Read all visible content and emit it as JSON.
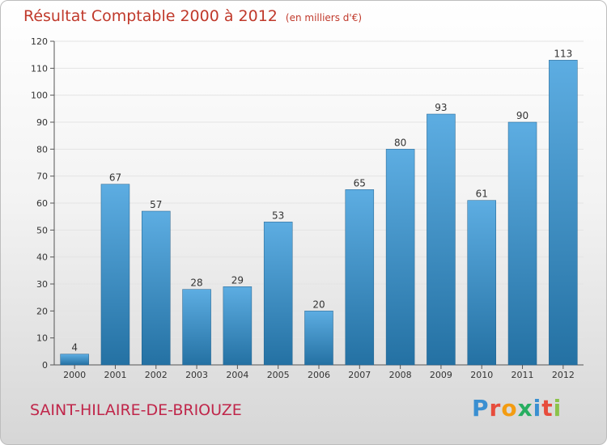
{
  "title": "Résultat Comptable 2000 à 2012",
  "subtitle": "(en milliers d'€)",
  "place": "SAINT-HILAIRE-DE-BRIOUZE",
  "logo": {
    "letters": [
      "P",
      "r",
      "o",
      "x",
      "i",
      "t",
      "i"
    ],
    "colors": [
      "#3a8fd1",
      "#e74c3c",
      "#f39c12",
      "#27ae60",
      "#3a8fd1",
      "#e74c3c",
      "#8bc34a"
    ]
  },
  "colors": {
    "bar_top": "#5dade2",
    "bar_bottom": "#2471a3",
    "title": "#c0392b",
    "place": "#c0264a"
  },
  "chart_data": {
    "type": "bar",
    "categories": [
      "2000",
      "2001",
      "2002",
      "2003",
      "2004",
      "2005",
      "2006",
      "2007",
      "2008",
      "2009",
      "2010",
      "2011",
      "2012"
    ],
    "values": [
      4,
      67,
      57,
      28,
      29,
      53,
      20,
      65,
      80,
      93,
      61,
      90,
      113
    ],
    "ylim": [
      0,
      120
    ],
    "yticks": [
      0,
      10,
      20,
      30,
      40,
      50,
      60,
      70,
      80,
      90,
      100,
      110,
      120
    ],
    "grid": true
  }
}
